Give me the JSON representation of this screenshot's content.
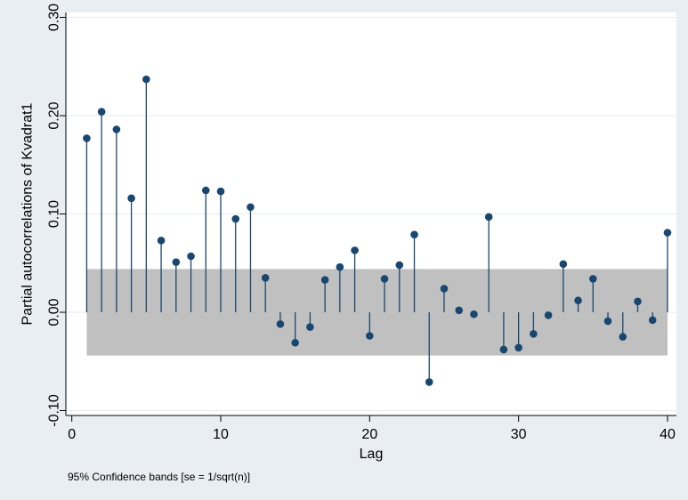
{
  "chart_data": {
    "type": "stem",
    "title": "",
    "xlabel": "Lag",
    "ylabel": "Partial autocorrelations of Kvadrat1",
    "note": "95% Confidence bands [se = 1/sqrt(n)]",
    "xlim": [
      -0.4,
      40.6
    ],
    "ylim": [
      -0.105,
      0.305
    ],
    "x_ticks": [
      0,
      10,
      20,
      30,
      40
    ],
    "x_tick_labels": [
      "0",
      "10",
      "20",
      "30",
      "40"
    ],
    "y_ticks": [
      -0.1,
      0.0,
      0.1,
      0.2,
      0.3
    ],
    "y_tick_labels": [
      "-0.10",
      "0.00",
      "0.10",
      "0.20",
      "0.30"
    ],
    "confidence_band": {
      "lower": -0.044,
      "upper": 0.044,
      "x_from": 1,
      "x_to": 40
    },
    "lags": [
      1,
      2,
      3,
      4,
      5,
      6,
      7,
      8,
      9,
      10,
      11,
      12,
      13,
      14,
      15,
      16,
      17,
      18,
      19,
      20,
      21,
      22,
      23,
      24,
      25,
      26,
      27,
      28,
      29,
      30,
      31,
      32,
      33,
      34,
      35,
      36,
      37,
      38,
      39,
      40
    ],
    "values": [
      0.177,
      0.204,
      0.186,
      0.116,
      0.237,
      0.073,
      0.051,
      0.057,
      0.124,
      0.123,
      0.095,
      0.107,
      0.035,
      -0.012,
      -0.031,
      -0.015,
      0.033,
      0.046,
      0.063,
      -0.024,
      0.034,
      0.048,
      0.079,
      -0.071,
      0.024,
      0.002,
      -0.002,
      0.097,
      -0.038,
      -0.036,
      -0.022,
      -0.003,
      0.049,
      0.012,
      0.034,
      -0.009,
      -0.025,
      0.011,
      -0.008,
      0.081
    ],
    "grid": true,
    "colors": {
      "background": "#e8eef2",
      "plot_background": "#ffffff",
      "band": "#c0c0c0",
      "marker": "#1a476f",
      "stem": "#1a476f",
      "grid": "#e6ebee"
    }
  }
}
